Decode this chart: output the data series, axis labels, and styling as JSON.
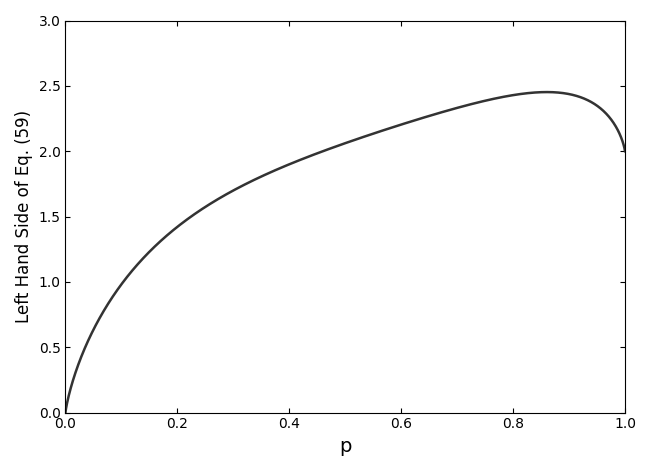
{
  "xlim": [
    0,
    1
  ],
  "ylim": [
    0,
    3
  ],
  "xlabel": "p",
  "ylabel": "Left Hand Side of Eq. (59)",
  "xticks": [
    0,
    0.2,
    0.4,
    0.6,
    0.8,
    1
  ],
  "yticks": [
    0,
    0.5,
    1,
    1.5,
    2,
    2.5,
    3
  ],
  "line_color": "#333333",
  "line_width": 1.8,
  "background_color": "#ffffff",
  "n_points": 2000
}
